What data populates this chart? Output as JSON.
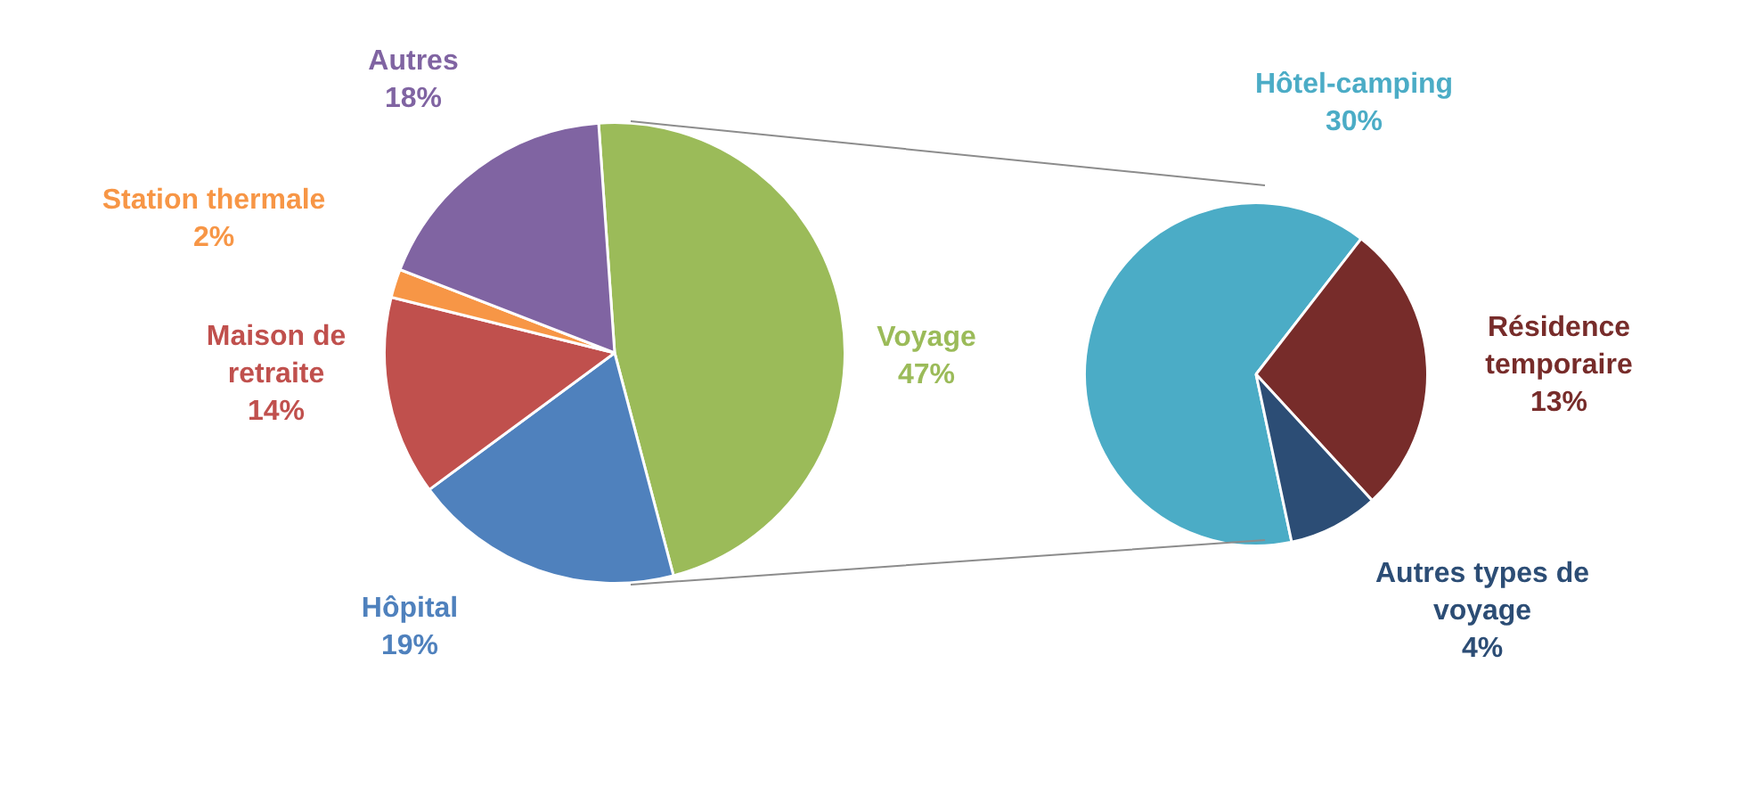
{
  "chart_data": [
    {
      "type": "pie",
      "categories": [
        "Voyage",
        "Hôpital",
        "Maison de retraite",
        "Station thermale",
        "Autres"
      ],
      "values": [
        47,
        19,
        14,
        2,
        18
      ],
      "colors": [
        "#9bbb59",
        "#4f81bd",
        "#c0504d",
        "#f79646",
        "#8064a2"
      ],
      "value_labels": [
        "47%",
        "19%",
        "14%",
        "2%",
        "18%"
      ]
    },
    {
      "type": "pie",
      "categories": [
        "Hôtel-camping",
        "Résidence temporaire",
        "Autres types de voyage"
      ],
      "values": [
        30,
        13,
        4
      ],
      "colors": [
        "#4bacc6",
        "#772c2a",
        "#2c4d75"
      ],
      "value_labels": [
        "30%",
        "13%",
        "4%"
      ]
    }
  ]
}
